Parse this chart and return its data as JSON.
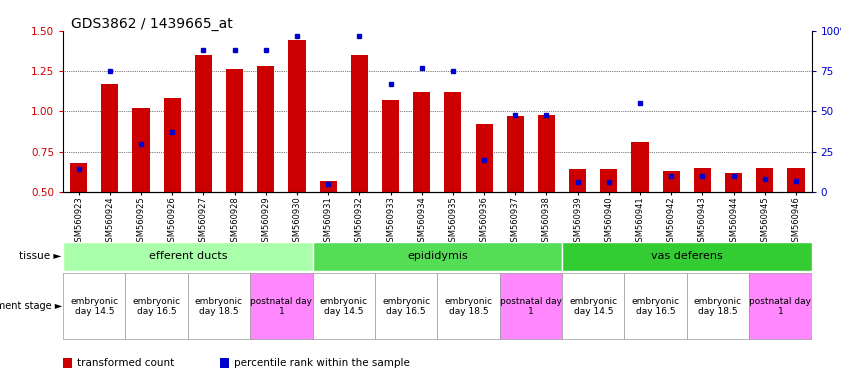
{
  "title": "GDS3862 / 1439665_at",
  "samples": [
    "GSM560923",
    "GSM560924",
    "GSM560925",
    "GSM560926",
    "GSM560927",
    "GSM560928",
    "GSM560929",
    "GSM560930",
    "GSM560931",
    "GSM560932",
    "GSM560933",
    "GSM560934",
    "GSM560935",
    "GSM560936",
    "GSM560937",
    "GSM560938",
    "GSM560939",
    "GSM560940",
    "GSM560941",
    "GSM560942",
    "GSM560943",
    "GSM560944",
    "GSM560945",
    "GSM560946"
  ],
  "transformed_count": [
    0.68,
    1.17,
    1.02,
    1.08,
    1.35,
    1.26,
    1.28,
    1.44,
    0.57,
    1.35,
    1.07,
    1.12,
    1.12,
    0.92,
    0.97,
    0.98,
    0.64,
    0.64,
    0.81,
    0.63,
    0.65,
    0.62,
    0.65,
    0.65
  ],
  "percentile_rank": [
    14,
    75,
    30,
    37,
    88,
    88,
    88,
    97,
    5,
    97,
    67,
    77,
    75,
    20,
    48,
    48,
    6,
    6,
    55,
    10,
    10,
    10,
    8,
    7
  ],
  "ylim_left": [
    0.5,
    1.5
  ],
  "ylim_right": [
    0,
    100
  ],
  "yticks_left": [
    0.5,
    0.75,
    1.0,
    1.25,
    1.5
  ],
  "yticks_right": [
    0,
    25,
    50,
    75,
    100
  ],
  "bar_color": "#cc0000",
  "dot_color": "#0000cc",
  "tissue_groups": [
    {
      "label": "efferent ducts",
      "start": 0,
      "end": 7,
      "color": "#aaffaa"
    },
    {
      "label": "epididymis",
      "start": 8,
      "end": 15,
      "color": "#55dd55"
    },
    {
      "label": "vas deferens",
      "start": 16,
      "end": 23,
      "color": "#33cc33"
    }
  ],
  "dev_stage_groups": [
    {
      "label": "embryonic\nday 14.5",
      "start": 0,
      "end": 1,
      "color": "#ffffff"
    },
    {
      "label": "embryonic\nday 16.5",
      "start": 2,
      "end": 3,
      "color": "#ffffff"
    },
    {
      "label": "embryonic\nday 18.5",
      "start": 4,
      "end": 5,
      "color": "#ffffff"
    },
    {
      "label": "postnatal day\n1",
      "start": 6,
      "end": 7,
      "color": "#ff88ff"
    },
    {
      "label": "embryonic\nday 14.5",
      "start": 8,
      "end": 9,
      "color": "#ffffff"
    },
    {
      "label": "embryonic\nday 16.5",
      "start": 10,
      "end": 11,
      "color": "#ffffff"
    },
    {
      "label": "embryonic\nday 18.5",
      "start": 12,
      "end": 13,
      "color": "#ffffff"
    },
    {
      "label": "postnatal day\n1",
      "start": 14,
      "end": 15,
      "color": "#ff88ff"
    },
    {
      "label": "embryonic\nday 14.5",
      "start": 16,
      "end": 17,
      "color": "#ffffff"
    },
    {
      "label": "embryonic\nday 16.5",
      "start": 18,
      "end": 19,
      "color": "#ffffff"
    },
    {
      "label": "embryonic\nday 18.5",
      "start": 20,
      "end": 21,
      "color": "#ffffff"
    },
    {
      "label": "postnatal day\n1",
      "start": 22,
      "end": 23,
      "color": "#ff88ff"
    }
  ],
  "legend_bar_label": "transformed count",
  "legend_dot_label": "percentile rank within the sample",
  "tissue_label": "tissue",
  "dev_stage_label": "development stage",
  "bar_width": 0.55,
  "background_color": "#ffffff"
}
